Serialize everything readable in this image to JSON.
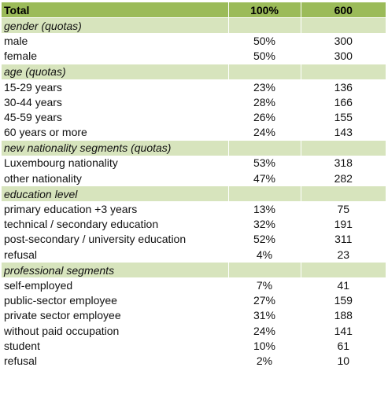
{
  "header": {
    "label": "Total",
    "pct": "100%",
    "count": "600"
  },
  "sections": [
    {
      "title": "gender (quotas)",
      "rows": [
        {
          "label": "male",
          "pct": "50%",
          "count": "300"
        },
        {
          "label": "female",
          "pct": "50%",
          "count": "300"
        }
      ]
    },
    {
      "title": "age (quotas)",
      "rows": [
        {
          "label": "15-29 years",
          "pct": "23%",
          "count": "136"
        },
        {
          "label": "30-44 years",
          "pct": "28%",
          "count": "166"
        },
        {
          "label": "45-59 years",
          "pct": "26%",
          "count": "155"
        },
        {
          "label": "60 years or more",
          "pct": "24%",
          "count": "143"
        }
      ]
    },
    {
      "title": "new nationality segments (quotas)",
      "rows": [
        {
          "label": "Luxembourg nationality",
          "pct": "53%",
          "count": "318"
        },
        {
          "label": "other nationality",
          "pct": "47%",
          "count": "282"
        }
      ]
    },
    {
      "title": "education level",
      "rows": [
        {
          "label": "primary education +3 years",
          "pct": "13%",
          "count": "75"
        },
        {
          "label": "technical / secondary education",
          "pct": "32%",
          "count": "191"
        },
        {
          "label": "post-secondary / university education",
          "pct": "52%",
          "count": "311"
        },
        {
          "label": "refusal",
          "pct": "4%",
          "count": "23"
        }
      ]
    },
    {
      "title": "professional segments",
      "rows": [
        {
          "label": "self-employed",
          "pct": "7%",
          "count": "41"
        },
        {
          "label": "public-sector employee",
          "pct": "27%",
          "count": "159"
        },
        {
          "label": "private sector employee",
          "pct": "31%",
          "count": "188"
        },
        {
          "label": "without paid occupation",
          "pct": "24%",
          "count": "141"
        },
        {
          "label": "student",
          "pct": "10%",
          "count": "61"
        },
        {
          "label": "refusal",
          "pct": "2%",
          "count": "10"
        }
      ]
    }
  ],
  "colors": {
    "header": "#9bbb59",
    "section": "#d7e4bd"
  }
}
